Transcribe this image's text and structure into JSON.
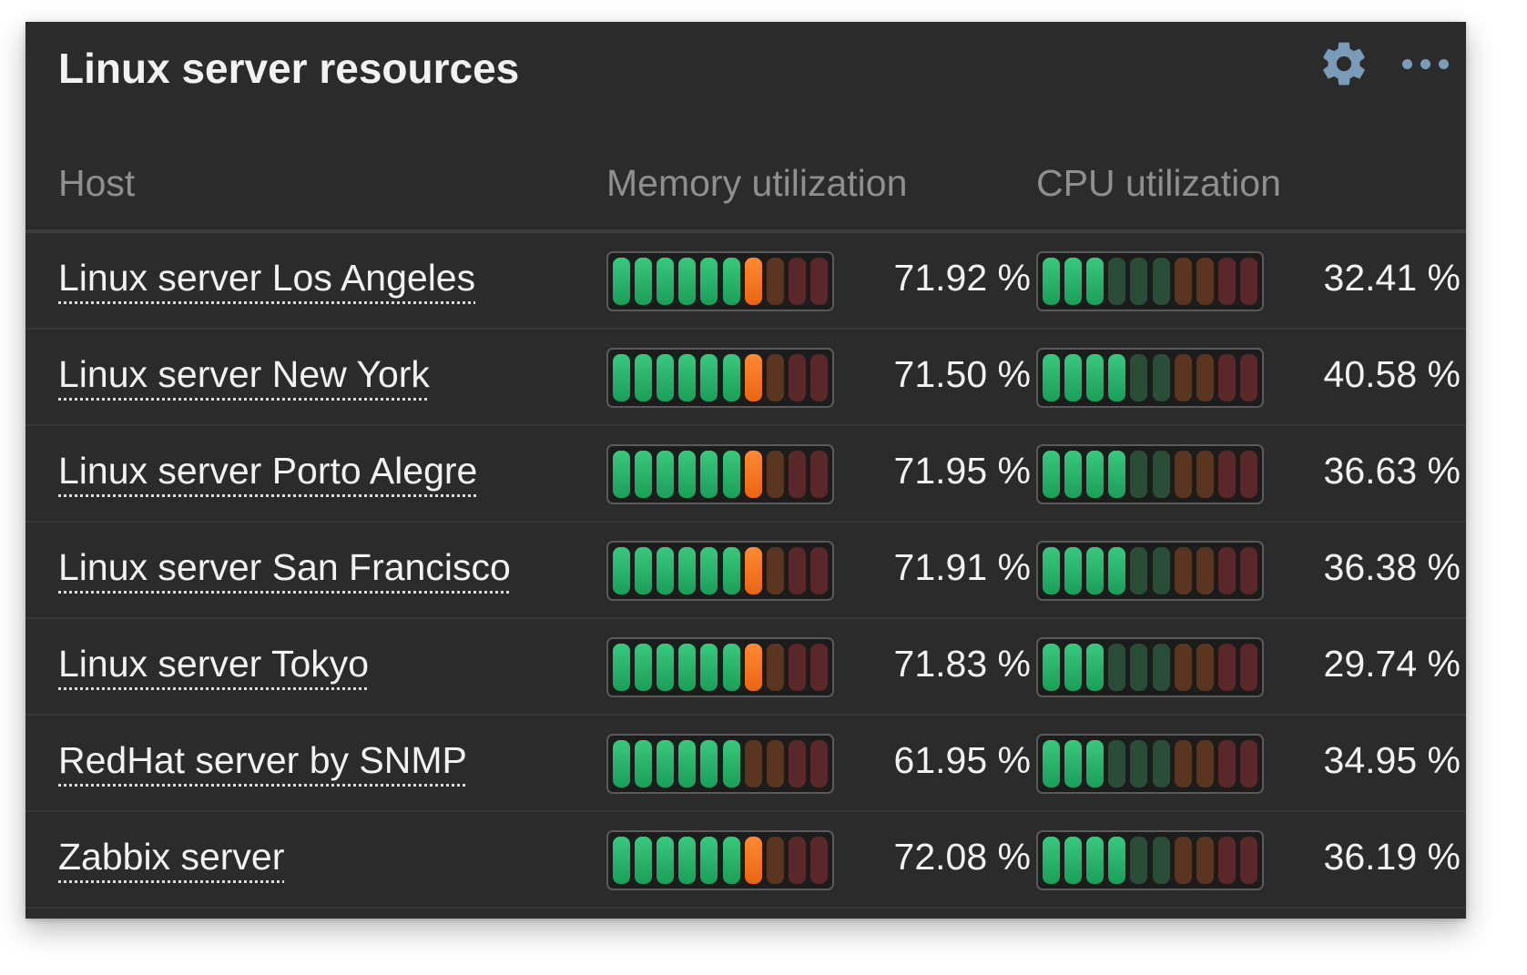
{
  "widget": {
    "title": "Linux server resources",
    "gear_icon": "gear-icon",
    "menu_icon": "more-horizontal-icon",
    "icon_color": "#7a9cb8"
  },
  "table": {
    "columns": {
      "host": "Host",
      "memory": "Memory utilization",
      "cpu": "CPU utilization"
    },
    "thresholds_percent": {
      "orange_from": 60,
      "red_from": 80
    },
    "rows": [
      {
        "host": "Linux server Los Angeles",
        "memory": 71.92,
        "memory_label": "71.92 %",
        "cpu": 32.41,
        "cpu_label": "32.41 %"
      },
      {
        "host": "Linux server New York",
        "memory": 71.5,
        "memory_label": "71.50 %",
        "cpu": 40.58,
        "cpu_label": "40.58 %"
      },
      {
        "host": "Linux server Porto Alegre",
        "memory": 71.95,
        "memory_label": "71.95 %",
        "cpu": 36.63,
        "cpu_label": "36.63 %"
      },
      {
        "host": "Linux server San Francisco",
        "memory": 71.91,
        "memory_label": "71.91 %",
        "cpu": 36.38,
        "cpu_label": "36.38 %"
      },
      {
        "host": "Linux server Tokyo",
        "memory": 71.83,
        "memory_label": "71.83 %",
        "cpu": 29.74,
        "cpu_label": "29.74 %"
      },
      {
        "host": "RedHat server by SNMP",
        "memory": 61.95,
        "memory_label": "61.95 %",
        "cpu": 34.95,
        "cpu_label": "34.95 %"
      },
      {
        "host": "Zabbix server",
        "memory": 72.08,
        "memory_label": "72.08 %",
        "cpu": 36.19,
        "cpu_label": "36.19 %"
      }
    ]
  }
}
